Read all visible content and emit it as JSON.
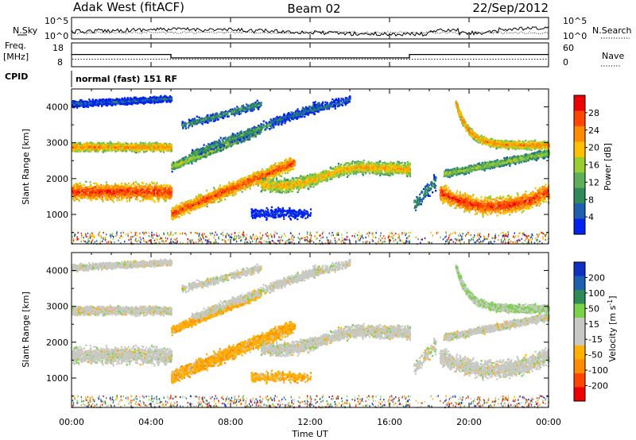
{
  "header": {
    "station": "Adak West (fitACF)",
    "beam": "Beam 02",
    "date": "22/Sep/2012"
  },
  "left_labels": {
    "nsky": "N.Sky",
    "freq": "Freq.",
    "mhz": "[MHz]",
    "cpid": "CPID"
  },
  "right_labels": {
    "nsearch": "N.Search",
    "nave": "Nave"
  },
  "cpid_text": "normal (fast) 151 RF",
  "colors": {
    "power": [
      "#0022ee",
      "#1f5fb0",
      "#2e8b57",
      "#5fae5a",
      "#9acd32",
      "#ffc000",
      "#ff8c00",
      "#ff4500",
      "#ee0000"
    ],
    "velocity": [
      "#ee0000",
      "#ff4500",
      "#ff8c00",
      "#ffb000",
      "#c8c8c4",
      "#c8c8c4",
      "#7ad14a",
      "#2e8b57",
      "#1f5fb0",
      "#1030c0"
    ]
  },
  "chart_data": [
    {
      "type": "line",
      "name": "noise-panel",
      "x_range": [
        0,
        24
      ],
      "left_ticks": [
        "10^5",
        "10^0"
      ],
      "right_ticks": [
        "10^5",
        "10^0"
      ]
    },
    {
      "type": "line",
      "name": "freq-nave-panel",
      "left_ticks": [
        "18",
        "8"
      ],
      "right_ticks": [
        "60",
        "0"
      ],
      "freq_step": {
        "x": [
          0,
          5,
          5,
          17,
          17,
          24
        ],
        "y": [
          13.2,
          13.2,
          11.2,
          11.2,
          13.2,
          13.2
        ]
      },
      "nave_level": 0.45
    },
    {
      "type": "heatmap",
      "name": "power-panel",
      "xlabel": "Time UT",
      "ylabel": "Slant Range [km]",
      "x_ticks": [
        "00:00",
        "04:00",
        "08:00",
        "12:00",
        "16:00",
        "20:00",
        "00:00"
      ],
      "y_ticks": [
        1000,
        2000,
        3000,
        4000
      ],
      "ylim": [
        180,
        4500
      ],
      "colorbar_label": "Power [dB]",
      "colorbar_ticks": [
        "28",
        "24",
        "20",
        "16",
        "12",
        "8",
        "4"
      ]
    },
    {
      "type": "heatmap",
      "name": "velocity-panel",
      "xlabel": "Time UT",
      "ylabel": "Slant Range [km]",
      "x_ticks": [
        "00:00",
        "04:00",
        "08:00",
        "12:00",
        "16:00",
        "20:00",
        "00:00"
      ],
      "y_ticks": [
        1000,
        2000,
        3000,
        4000
      ],
      "ylim": [
        180,
        4500
      ],
      "colorbar_label": "Velocity [m s^-1]",
      "colorbar_ticks": [
        "200",
        "100",
        "50",
        "15",
        "-15",
        "-50",
        "-100",
        "-200"
      ]
    }
  ]
}
